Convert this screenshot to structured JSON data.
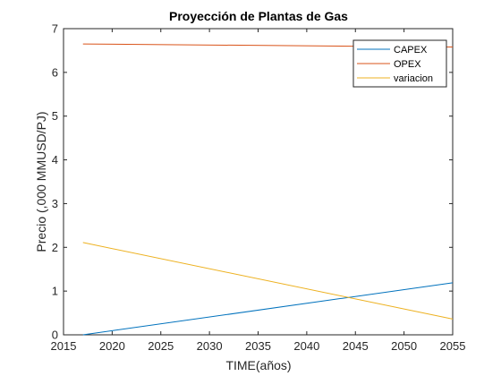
{
  "chart_data": {
    "type": "line",
    "title": "Proyección de Plantas de Gas",
    "xlabel": "TIME(años)",
    "ylabel": "Precio (,000 MMUSD/PJ)",
    "xlim": [
      2015,
      2055
    ],
    "ylim": [
      0,
      7
    ],
    "xticks": [
      2015,
      2020,
      2025,
      2030,
      2035,
      2040,
      2045,
      2050,
      2055
    ],
    "yticks": [
      0,
      1,
      2,
      3,
      4,
      5,
      6,
      7
    ],
    "grid": false,
    "legend_position": "top-right",
    "series": [
      {
        "name": "CAPEX",
        "color": "#0072bd",
        "x": [
          2017,
          2055
        ],
        "y": [
          0.0,
          1.19
        ]
      },
      {
        "name": "OPEX",
        "color": "#d95319",
        "x": [
          2017,
          2055
        ],
        "y": [
          6.65,
          6.58
        ]
      },
      {
        "name": "variacion",
        "color": "#edb120",
        "x": [
          2017,
          2055
        ],
        "y": [
          2.11,
          0.36
        ]
      }
    ]
  }
}
